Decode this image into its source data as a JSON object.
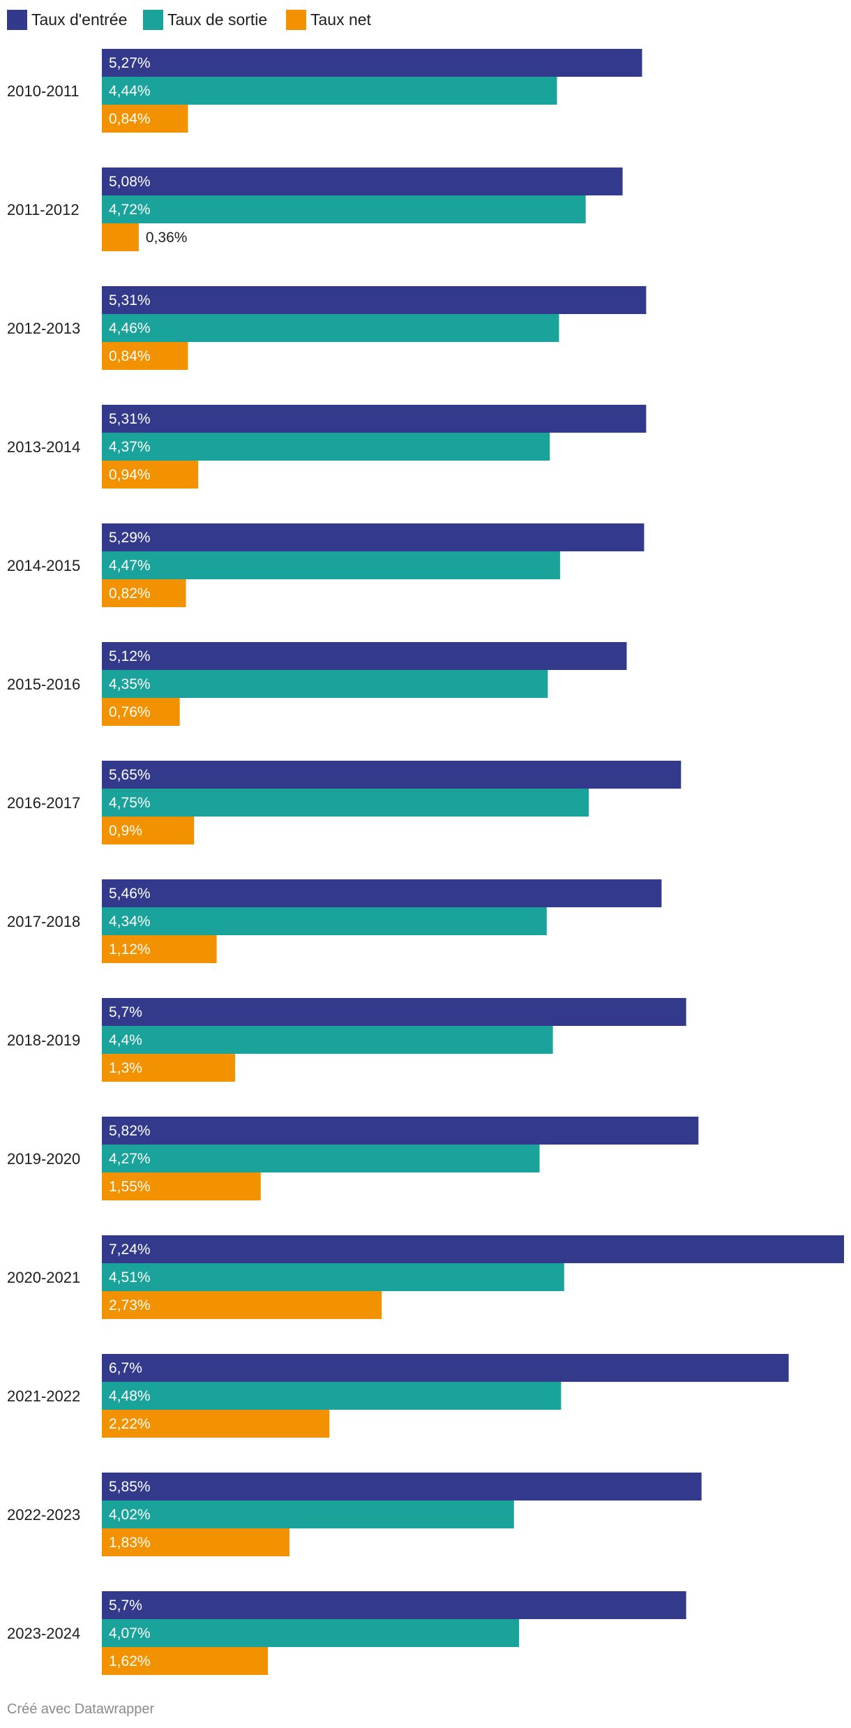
{
  "chart_data": {
    "type": "bar",
    "orientation": "horizontal",
    "categories": [
      "2010-2011",
      "2011-2012",
      "2012-2013",
      "2013-2014",
      "2014-2015",
      "2015-2016",
      "2016-2017",
      "2017-2018",
      "2018-2019",
      "2019-2020",
      "2020-2021",
      "2021-2022",
      "2022-2023",
      "2023-2024"
    ],
    "series": [
      {
        "name": "Taux d'entrée",
        "color": "#333a8c",
        "values": [
          5.27,
          5.08,
          5.31,
          5.31,
          5.29,
          5.12,
          5.65,
          5.46,
          5.7,
          5.82,
          7.24,
          6.7,
          5.85,
          5.7
        ],
        "labels": [
          "5,27%",
          "5,08%",
          "5,31%",
          "5,31%",
          "5,29%",
          "5,12%",
          "5,65%",
          "5,46%",
          "5,7%",
          "5,82%",
          "7,24%",
          "6,7%",
          "5,85%",
          "5,7%"
        ]
      },
      {
        "name": "Taux de sortie",
        "color": "#1aa39b",
        "values": [
          4.44,
          4.72,
          4.46,
          4.37,
          4.47,
          4.35,
          4.75,
          4.34,
          4.4,
          4.27,
          4.51,
          4.48,
          4.02,
          4.07
        ],
        "labels": [
          "4,44%",
          "4,72%",
          "4,46%",
          "4,37%",
          "4,47%",
          "4,35%",
          "4,75%",
          "4,34%",
          "4,4%",
          "4,27%",
          "4,51%",
          "4,48%",
          "4,02%",
          "4,07%"
        ]
      },
      {
        "name": "Taux net",
        "color": "#f39200",
        "values": [
          0.84,
          0.36,
          0.84,
          0.94,
          0.82,
          0.76,
          0.9,
          1.12,
          1.3,
          1.55,
          2.73,
          2.22,
          1.83,
          1.62
        ],
        "labels": [
          "0,84%",
          "0,36%",
          "0,84%",
          "0,94%",
          "0,82%",
          "0,76%",
          "0,9%",
          "1,12%",
          "1,3%",
          "1,55%",
          "2,73%",
          "2,22%",
          "1,83%",
          "1,62%"
        ]
      }
    ],
    "xlim": [
      0,
      7.24
    ],
    "grid": false,
    "legend_position": "top-left"
  },
  "footer": {
    "credit": "Créé avec Datawrapper"
  }
}
